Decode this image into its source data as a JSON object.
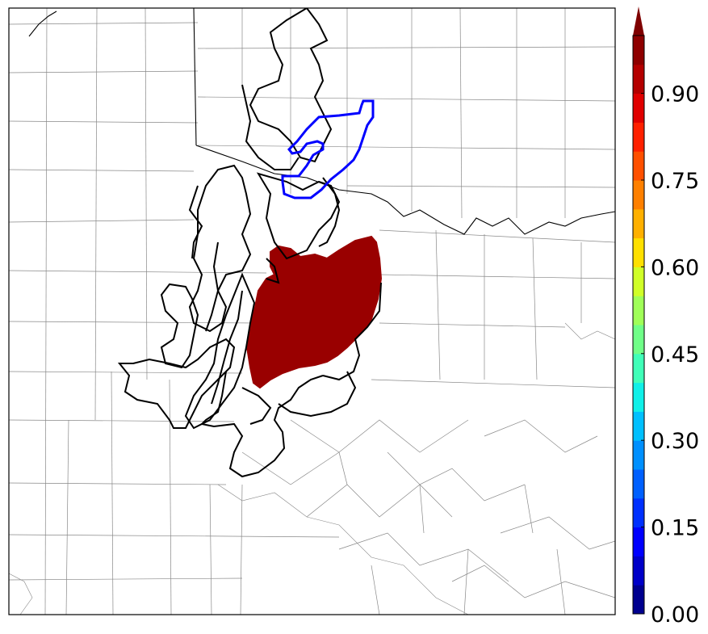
{
  "colorbar": {
    "tick_labels": [
      "0.00",
      "0.15",
      "0.30",
      "0.45",
      "0.60",
      "0.75",
      "0.90"
    ],
    "tick_values": [
      0.0,
      0.15,
      0.3,
      0.45,
      0.6,
      0.75,
      0.9
    ],
    "vmin": 0.0,
    "vmax": 1.0,
    "extend": "max",
    "colors": [
      "#00008f",
      "#0000c8",
      "#0000ff",
      "#0030ff",
      "#0060ff",
      "#0090ff",
      "#00c0ff",
      "#10f0e8",
      "#40ffb8",
      "#70ff88",
      "#a0ff58",
      "#d0ff28",
      "#ffe000",
      "#ffb000",
      "#ff8000",
      "#ff5000",
      "#ff2000",
      "#e00000",
      "#b40000",
      "#8e0000"
    ],
    "extend_color": "#7f0000"
  },
  "map": {
    "filled_region_color": "#990000",
    "contour_colors": {
      "ensemble_members": "#000000",
      "highlight": "#0000ff"
    },
    "boundary_color": "#888888",
    "state_line_color": "#000000"
  }
}
